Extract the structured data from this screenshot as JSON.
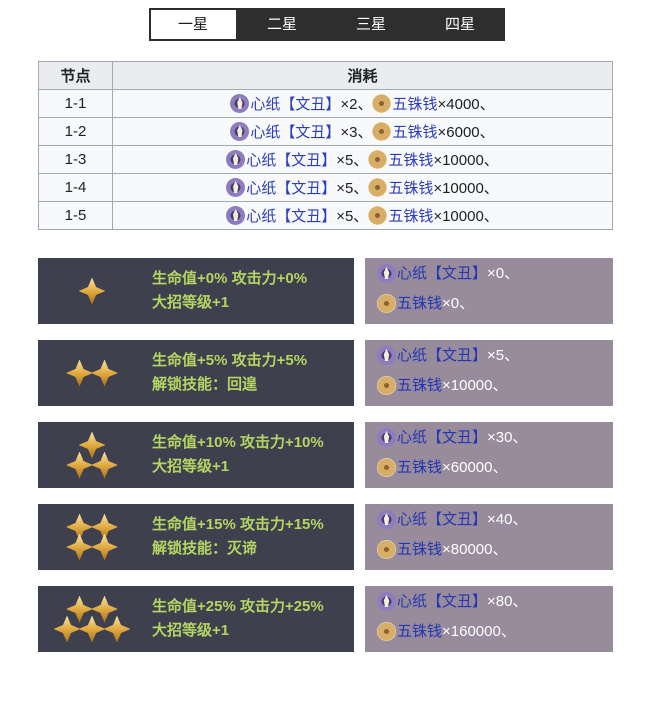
{
  "colors": {
    "tab_dark": "#2e2e2e",
    "tab_active_bg": "#ffffff",
    "link": "#2c3dbf",
    "panel_dark": "#3e404d",
    "panel_purple": "#978b9c",
    "effect_green": "#b4d563",
    "star_gold": "#e2ab41",
    "table_border": "#a2a9b1",
    "table_header_bg": "#eaecf0"
  },
  "tabs": [
    {
      "label": "一星",
      "active": true
    },
    {
      "label": "二星",
      "active": false
    },
    {
      "label": "三星",
      "active": false
    },
    {
      "label": "四星",
      "active": false
    }
  ],
  "table": {
    "headers": [
      "节点",
      "消耗"
    ],
    "rows": [
      {
        "node": "1-1",
        "costs": [
          {
            "icon": "heart-paper",
            "item": "心纸【文丑】",
            "count": "×2、"
          },
          {
            "icon": "coin",
            "item": "五铢钱",
            "count": "×4000、"
          }
        ]
      },
      {
        "node": "1-2",
        "costs": [
          {
            "icon": "heart-paper",
            "item": "心纸【文丑】",
            "count": "×3、"
          },
          {
            "icon": "coin",
            "item": "五铢钱",
            "count": "×6000、"
          }
        ]
      },
      {
        "node": "1-3",
        "costs": [
          {
            "icon": "heart-paper",
            "item": "心纸【文丑】",
            "count": "×5、"
          },
          {
            "icon": "coin",
            "item": "五铢钱",
            "count": "×10000、"
          }
        ]
      },
      {
        "node": "1-4",
        "costs": [
          {
            "icon": "heart-paper",
            "item": "心纸【文丑】",
            "count": "×5、"
          },
          {
            "icon": "coin",
            "item": "五铢钱",
            "count": "×10000、"
          }
        ]
      },
      {
        "node": "1-5",
        "costs": [
          {
            "icon": "heart-paper",
            "item": "心纸【文丑】",
            "count": "×5、"
          },
          {
            "icon": "coin",
            "item": "五铢钱",
            "count": "×10000、"
          }
        ]
      }
    ]
  },
  "star_blocks": [
    {
      "stars": 1,
      "star_rows": [
        1
      ],
      "lines": [
        "生命值+0% 攻击力+0%",
        "大招等级+1"
      ],
      "costs": [
        {
          "icon": "heart-paper",
          "item": "心纸【文丑】",
          "count": "×0、"
        },
        {
          "icon": "coin",
          "item": "五铢钱",
          "count": "×0、"
        }
      ]
    },
    {
      "stars": 2,
      "star_rows": [
        2
      ],
      "lines": [
        "生命值+5% 攻击力+5%",
        "解锁技能：回遑"
      ],
      "costs": [
        {
          "icon": "heart-paper",
          "item": "心纸【文丑】",
          "count": "×5、"
        },
        {
          "icon": "coin",
          "item": "五铢钱",
          "count": "×10000、"
        }
      ]
    },
    {
      "stars": 3,
      "star_rows": [
        1,
        2
      ],
      "lines": [
        "生命值+10% 攻击力+10%",
        "大招等级+1"
      ],
      "costs": [
        {
          "icon": "heart-paper",
          "item": "心纸【文丑】",
          "count": "×30、"
        },
        {
          "icon": "coin",
          "item": "五铢钱",
          "count": "×60000、"
        }
      ]
    },
    {
      "stars": 4,
      "star_rows": [
        2,
        2
      ],
      "lines": [
        "生命值+15% 攻击力+15%",
        "解锁技能：灭谛"
      ],
      "costs": [
        {
          "icon": "heart-paper",
          "item": "心纸【文丑】",
          "count": "×40、"
        },
        {
          "icon": "coin",
          "item": "五铢钱",
          "count": "×80000、"
        }
      ]
    },
    {
      "stars": 5,
      "star_rows": [
        2,
        3
      ],
      "lines": [
        "生命值+25% 攻击力+25%",
        "大招等级+1"
      ],
      "costs": [
        {
          "icon": "heart-paper",
          "item": "心纸【文丑】",
          "count": "×80、"
        },
        {
          "icon": "coin",
          "item": "五铢钱",
          "count": "×160000、"
        }
      ]
    }
  ]
}
